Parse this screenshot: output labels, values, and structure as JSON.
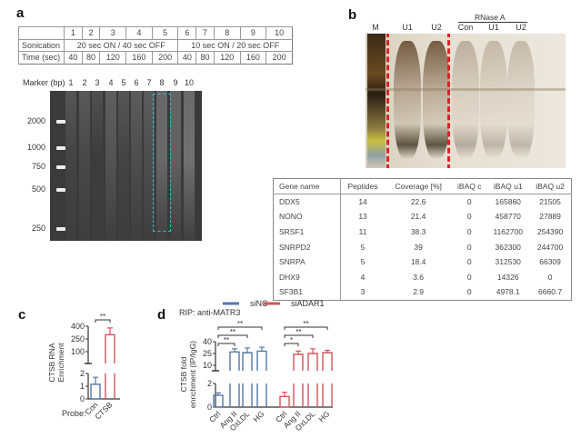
{
  "panel_a": {
    "label": "a",
    "table": {
      "lanes": [
        "1",
        "2",
        "3",
        "4",
        "5",
        "6",
        "7",
        "8",
        "9",
        "10"
      ],
      "sonication_label": "Sonication",
      "sonication_1": "20 sec ON / 40 sec OFF",
      "sonication_2": "10 sec ON / 20 sec OFF",
      "time_label": "Time (sec)",
      "times": [
        "40",
        "80",
        "120",
        "160",
        "200",
        "40",
        "80",
        "120",
        "160",
        "200"
      ]
    },
    "gel": {
      "marker_label": "Marker (bp)",
      "lanes": [
        "1",
        "2",
        "3",
        "4",
        "5",
        "6",
        "7",
        "8",
        "9",
        "10"
      ],
      "markers": [
        "2000",
        "1000",
        "750",
        "500",
        "250"
      ],
      "highlight_lane": "8"
    }
  },
  "panel_b": {
    "label": "b",
    "rnase_label": "RNase A",
    "lanes": [
      "M",
      "U1",
      "U2",
      "Con",
      "U1",
      "U2"
    ],
    "table": {
      "headers": [
        "Gene name",
        "Peptides",
        "Coverage [%]",
        "iBAQ c",
        "iBAQ u1",
        "iBAQ u2"
      ],
      "rows": [
        [
          "DDX5",
          "14",
          "22.6",
          "0",
          "165860",
          "21505"
        ],
        [
          "NONO",
          "13",
          "21.4",
          "0",
          "458770",
          "27889"
        ],
        [
          "SRSF1",
          "11",
          "38.3",
          "0",
          "1162700",
          "254390"
        ],
        [
          "SNRPD2",
          "5",
          "39",
          "0",
          "362300",
          "244700"
        ],
        [
          "SNRPA",
          "5",
          "18.4",
          "0",
          "312530",
          "66309"
        ],
        [
          "DHX9",
          "4",
          "3.6",
          "0",
          "14326",
          "0"
        ],
        [
          "SF3B1",
          "3",
          "2.9",
          "0",
          "4978.1",
          "6660.7"
        ]
      ]
    }
  },
  "colors": {
    "blue": "#5676a8",
    "red": "#d0565e"
  },
  "chart_data": [
    {
      "panel": "c",
      "type": "bar",
      "ylabel": "CTSB RNA Enrichment",
      "xlabel_prefix": "Probe:",
      "categories": [
        "Con",
        "CTSB"
      ],
      "values": [
        1.15,
        300
      ],
      "errors": [
        0.55,
        80
      ],
      "colors": [
        "blue",
        "red"
      ],
      "broken_axis": {
        "low": [
          0,
          2
        ],
        "high": [
          100,
          400
        ]
      },
      "yticks_low": [
        "0",
        "1",
        "2"
      ],
      "yticks_high": [
        "100",
        "250",
        "400"
      ],
      "significance": [
        {
          "from": 0,
          "to": 1,
          "text": "**"
        }
      ]
    },
    {
      "panel": "d",
      "type": "bar",
      "title": "RIP: anti-MATR3",
      "ylabel": "CTSB fold enrichment (IP/IgG)",
      "categories": [
        "Ctrl",
        "Ang II",
        "OxLDL",
        "HG"
      ],
      "broken_axis": {
        "low": [
          0,
          2
        ],
        "high": [
          10,
          40
        ]
      },
      "yticks_low": [
        "0",
        "2"
      ],
      "yticks_high": [
        "10",
        "25",
        "40"
      ],
      "series": [
        {
          "name": "siNC",
          "color": "blue",
          "values": [
            1.0,
            27,
            26,
            28
          ],
          "errors": [
            0.2,
            4,
            6,
            5
          ],
          "significance": [
            "**",
            "**",
            "**"
          ]
        },
        {
          "name": "siADAR1",
          "color": "red",
          "values": [
            0.9,
            24,
            25,
            26
          ],
          "errors": [
            0.35,
            4,
            6,
            3
          ],
          "significance": [
            "*",
            "**",
            "**"
          ]
        }
      ]
    }
  ]
}
